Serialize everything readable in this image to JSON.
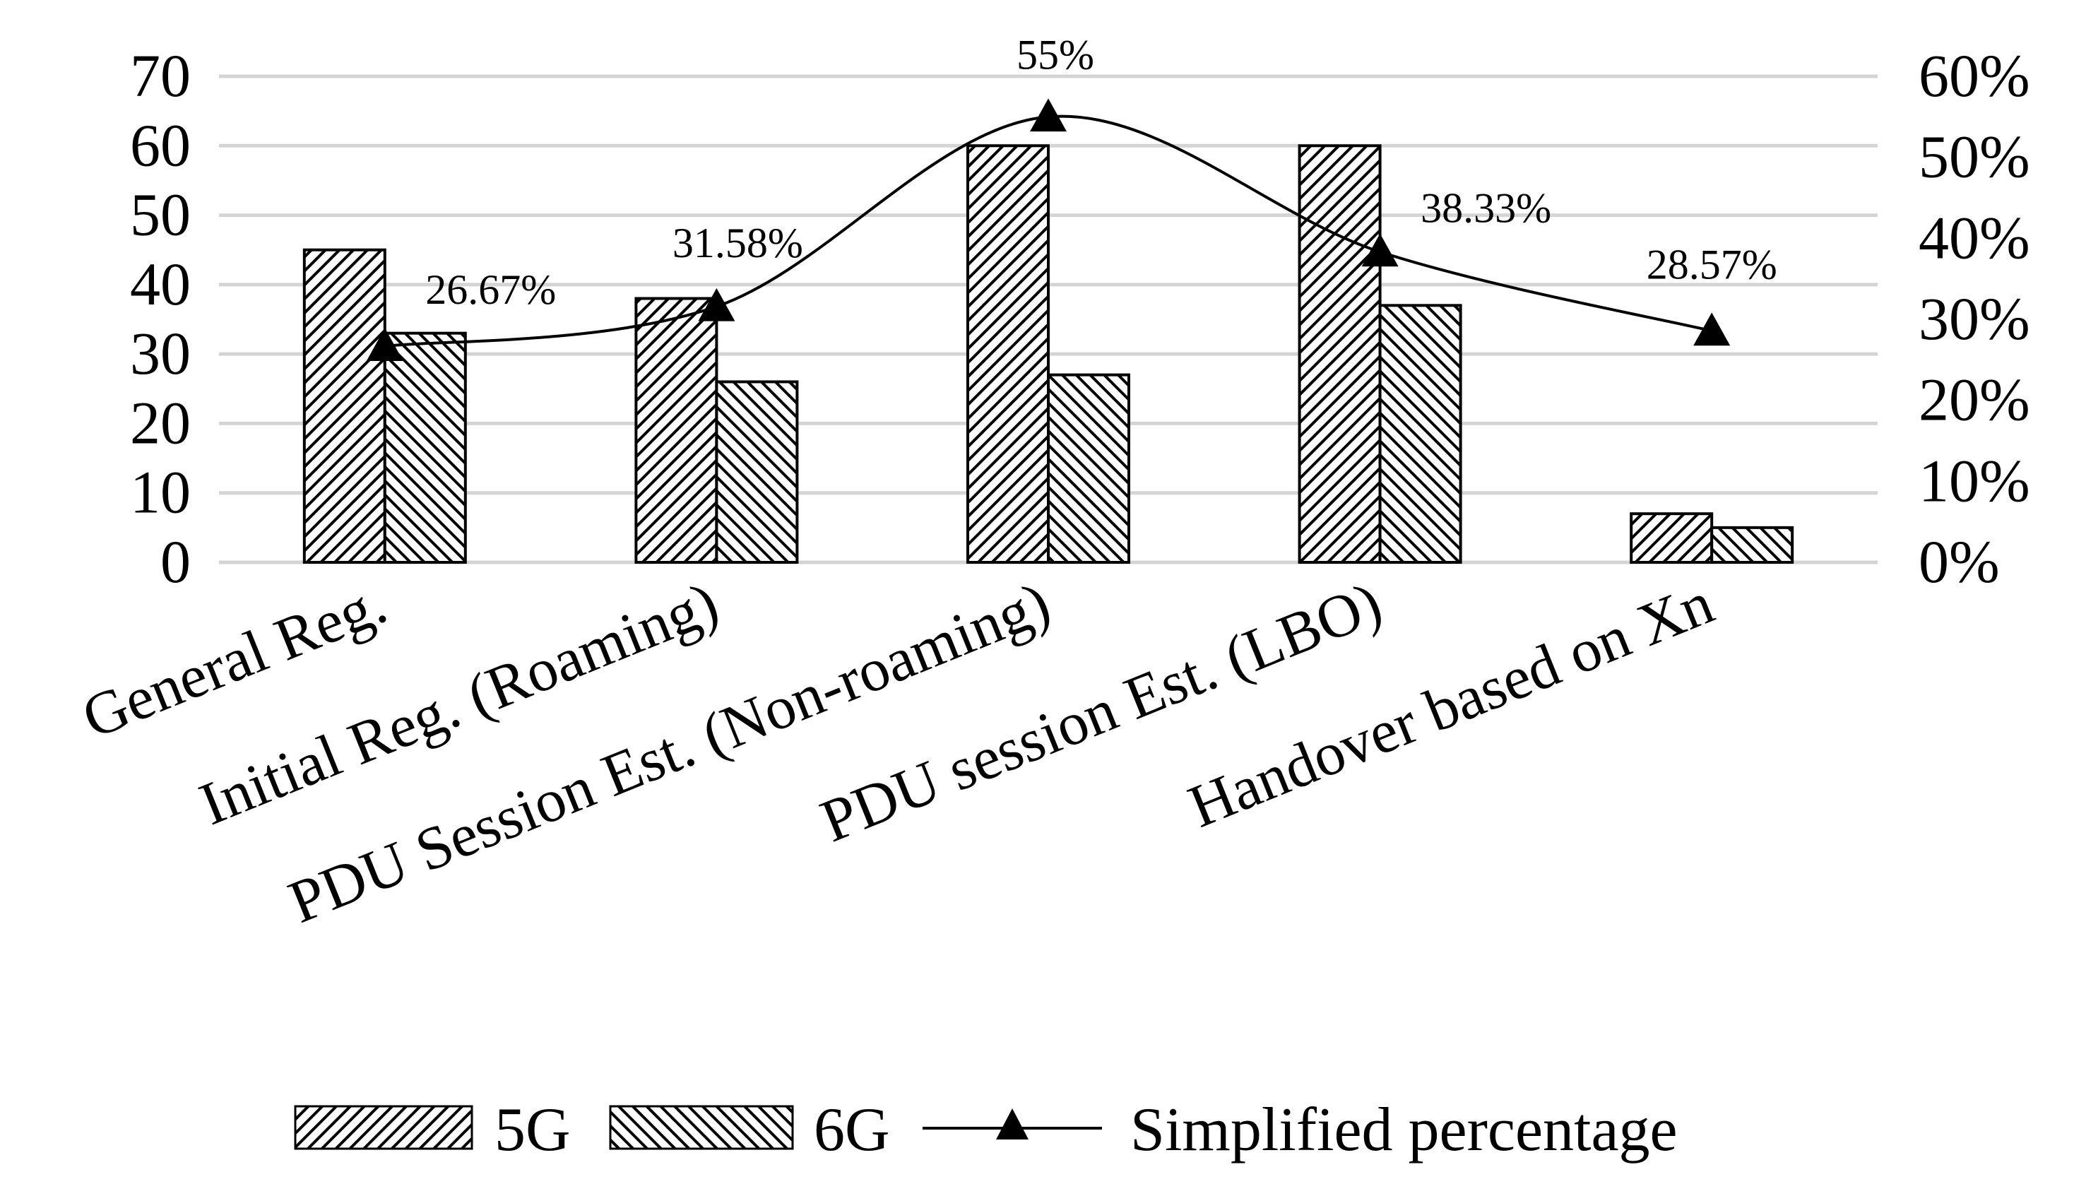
{
  "chart_data": {
    "type": "bar",
    "title": "",
    "categories": [
      "General Reg.",
      "Initial Reg. (Roaming)",
      "PDU Session Est. (Non-roaming)",
      "PDU  session Est. (LBO)",
      "Handover based on Xn"
    ],
    "series": [
      {
        "name": "5G",
        "axis": "left",
        "pattern": "diag-right",
        "values": [
          45,
          38,
          60,
          60,
          7
        ]
      },
      {
        "name": "6G",
        "axis": "left",
        "pattern": "diag-left",
        "values": [
          33,
          26,
          27,
          37,
          5
        ]
      },
      {
        "name": "Simplified percentage",
        "axis": "right",
        "kind": "line",
        "marker": "triangle",
        "values": [
          26.67,
          31.58,
          55,
          38.33,
          28.57
        ],
        "labels": [
          "26.67%",
          "31.58%",
          "55%",
          "38.33%",
          "28.57%"
        ]
      }
    ],
    "y_left": {
      "min": 0,
      "max": 70,
      "ticks": [
        "0",
        "10",
        "20",
        "30",
        "40",
        "50",
        "60",
        "70"
      ],
      "label": ""
    },
    "y_right": {
      "min": 0,
      "max": 60,
      "ticks": [
        "0%",
        "10%",
        "20%",
        "30%",
        "40%",
        "50%",
        "60%"
      ],
      "label": ""
    },
    "xlabel": "",
    "grid": true,
    "legend": {
      "position": "bottom",
      "items": [
        "5G",
        "6G",
        "Simplified percentage"
      ]
    }
  }
}
